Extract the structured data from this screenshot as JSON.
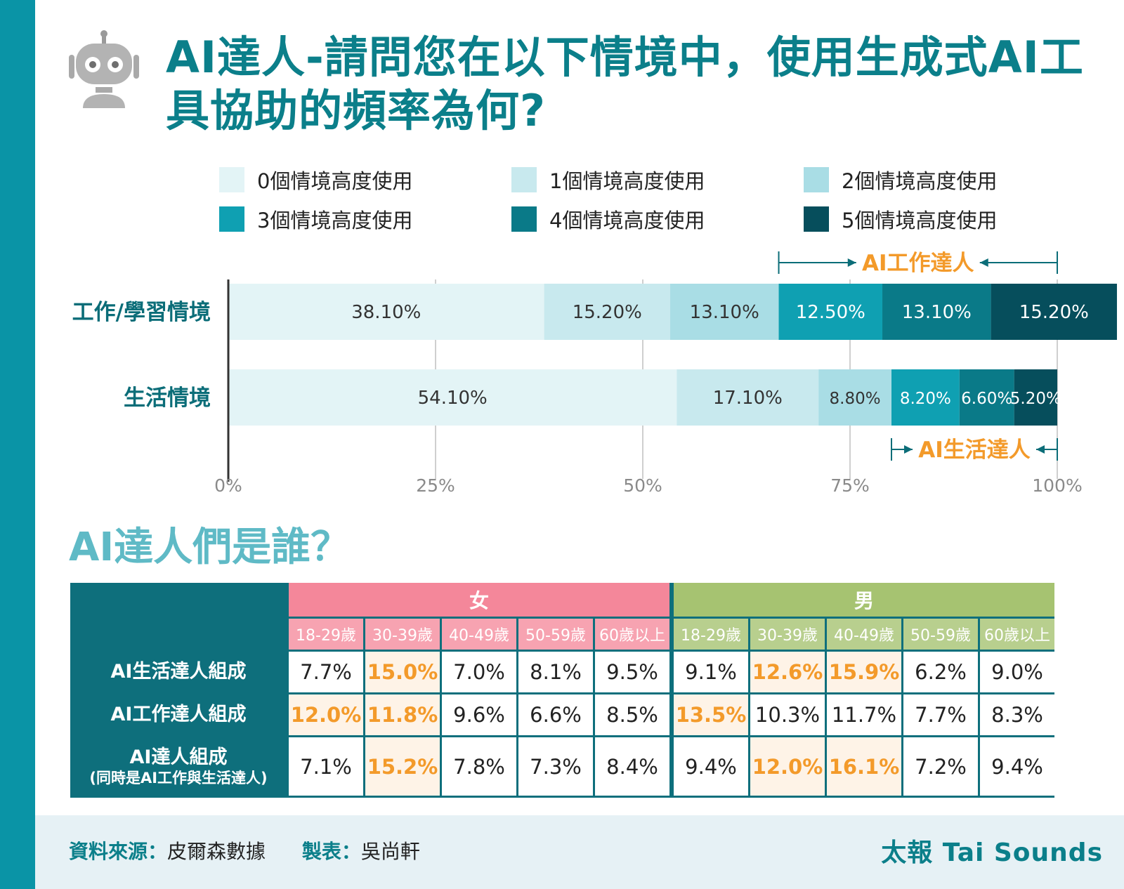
{
  "title": "AI達人-請問您在以下情境中，使用生成式AI工具協助的頻率為何?",
  "colors": {
    "accent": "#0b7f8a",
    "highlight": "#f39a2a",
    "female": "#f4879a",
    "male": "#a6c371",
    "row_header": "#0e6f7c"
  },
  "legend": [
    {
      "label": "0個情境高度使用",
      "color": "#e3f4f6"
    },
    {
      "label": "1個情境高度使用",
      "color": "#c8e9ee"
    },
    {
      "label": "2個情境高度使用",
      "color": "#a9dde5"
    },
    {
      "label": "3個情境高度使用",
      "color": "#0fa0b2"
    },
    {
      "label": "4個情境高度使用",
      "color": "#0a7a88"
    },
    {
      "label": "5個情境高度使用",
      "color": "#064e5c"
    }
  ],
  "chart_data": {
    "type": "bar",
    "orientation": "horizontal",
    "stacked": true,
    "categories": [
      "工作/學習情境",
      "生活情境"
    ],
    "series": [
      {
        "name": "0個情境高度使用",
        "values": [
          38.1,
          54.1
        ],
        "labels": [
          "38.10%",
          "54.10%"
        ]
      },
      {
        "name": "1個情境高度使用",
        "values": [
          15.2,
          17.1
        ],
        "labels": [
          "15.20%",
          "17.10%"
        ]
      },
      {
        "name": "2個情境高度使用",
        "values": [
          13.1,
          8.8
        ],
        "labels": [
          "13.10%",
          "8.80%"
        ]
      },
      {
        "name": "3個情境高度使用",
        "values": [
          12.5,
          8.2
        ],
        "labels": [
          "12.50%",
          "8.20%"
        ]
      },
      {
        "name": "4個情境高度使用",
        "values": [
          13.1,
          6.6
        ],
        "labels": [
          "13.10%",
          "6.60%"
        ]
      },
      {
        "name": "5個情境高度使用",
        "values": [
          15.2,
          5.2
        ],
        "labels": [
          "15.20%",
          "5.20%"
        ]
      }
    ],
    "xlim": [
      0,
      100
    ],
    "xticks": [
      0,
      25,
      50,
      75,
      100
    ],
    "xtick_labels": [
      "0%",
      "25%",
      "50%",
      "75%",
      "100%"
    ],
    "grid": true,
    "annotations": [
      {
        "text": "AI工作達人",
        "category": "工作/學習情境",
        "from_series": 3,
        "position": "above"
      },
      {
        "text": "AI生活達人",
        "category": "生活情境",
        "from_series": 3,
        "position": "below"
      }
    ]
  },
  "who": {
    "title": "AI達人們是誰？",
    "female_label": "女",
    "male_label": "男",
    "ages": [
      "18-29歲",
      "30-39歲",
      "40-49歲",
      "50-59歲",
      "60歲以上"
    ],
    "rows": [
      {
        "label": "AI生活達人組成",
        "sub": "",
        "female": [
          "7.7%",
          "15.0%",
          "7.0%",
          "8.1%",
          "9.5%"
        ],
        "male": [
          "9.1%",
          "12.6%",
          "15.9%",
          "6.2%",
          "9.0%"
        ],
        "female_hl": [
          false,
          true,
          false,
          false,
          false
        ],
        "male_hl": [
          false,
          true,
          true,
          false,
          false
        ]
      },
      {
        "label": "AI工作達人組成",
        "sub": "",
        "female": [
          "12.0%",
          "11.8%",
          "9.6%",
          "6.6%",
          "8.5%"
        ],
        "male": [
          "13.5%",
          "10.3%",
          "11.7%",
          "7.7%",
          "8.3%"
        ],
        "female_hl": [
          true,
          true,
          false,
          false,
          false
        ],
        "male_hl": [
          true,
          false,
          false,
          false,
          false
        ]
      },
      {
        "label": "AI達人組成",
        "sub": "(同時是AI工作與生活達人)",
        "female": [
          "7.1%",
          "15.2%",
          "7.8%",
          "7.3%",
          "8.4%"
        ],
        "male": [
          "9.4%",
          "12.0%",
          "16.1%",
          "7.2%",
          "9.4%"
        ],
        "female_hl": [
          false,
          true,
          false,
          false,
          false
        ],
        "male_hl": [
          false,
          true,
          true,
          false,
          false
        ]
      }
    ]
  },
  "footer": {
    "source_label": "資料來源：",
    "source": "皮爾森數據",
    "maker_label": "製表：",
    "maker": "吳尚軒",
    "brand": "太報 Tai Sounds"
  }
}
